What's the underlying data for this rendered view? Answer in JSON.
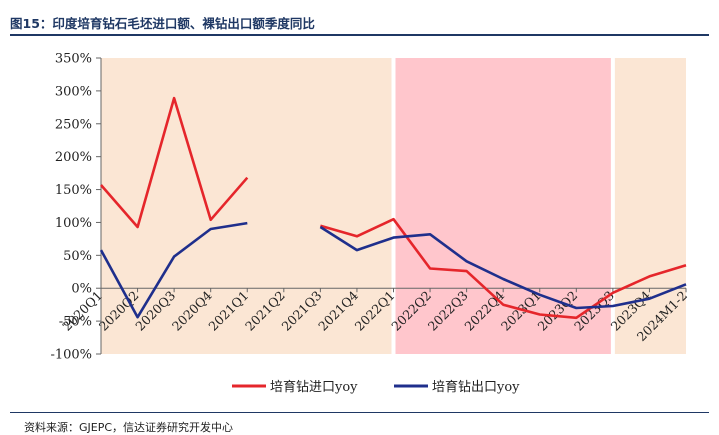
{
  "header": {
    "title": "图15：印度培育钻石毛坯进口额、裸钻出口额季度同比"
  },
  "footer": {
    "source": "资料来源：GJEPC，信达证券研究开发中心"
  },
  "colors": {
    "title": "#1f3864",
    "import_line": "#e5262b",
    "export_line": "#1f2f8c",
    "shade_beige": "#fbe6d4",
    "shade_pink": "#ffc6cc"
  },
  "chart_data": {
    "type": "line",
    "title": "",
    "xlabel": "",
    "ylabel": "",
    "ylim": [
      -1.0,
      3.5
    ],
    "yticks": [
      -1.0,
      -0.5,
      0.0,
      0.5,
      1.0,
      1.5,
      2.0,
      2.5,
      3.0,
      3.5
    ],
    "ytick_labels": [
      "-100%",
      "-50%",
      "0%",
      "50%",
      "100%",
      "150%",
      "200%",
      "250%",
      "300%",
      "350%"
    ],
    "categories": [
      "2020Q1",
      "2020Q2",
      "2020Q3",
      "2020Q4",
      "2021Q1",
      "2021Q2",
      "2021Q3",
      "2021Q4",
      "2022Q1",
      "2022Q2",
      "2022Q3",
      "2022Q4",
      "2023Q1",
      "2023Q2",
      "2023Q3",
      "2023Q4",
      "2024M1-2"
    ],
    "series": [
      {
        "name": "培育钻进口yoy",
        "color": "#e5262b",
        "values": [
          1.57,
          0.93,
          2.89,
          1.04,
          1.68,
          null,
          0.95,
          0.79,
          1.05,
          0.3,
          0.26,
          -0.25,
          -0.4,
          -0.45,
          -0.07,
          0.18,
          0.35
        ]
      },
      {
        "name": "培育钻出口yoy",
        "color": "#1f2f8c",
        "values": [
          0.58,
          -0.44,
          0.48,
          0.9,
          0.99,
          null,
          0.93,
          0.58,
          0.77,
          0.82,
          0.41,
          0.14,
          -0.1,
          -0.3,
          -0.27,
          -0.16,
          0.06
        ]
      }
    ],
    "shaded_regions": [
      {
        "from": "2020Q1",
        "to": "2022Q1",
        "color": "#fbe6d4"
      },
      {
        "from": "2022Q1",
        "to": "2023Q3",
        "color": "#ffc6cc"
      },
      {
        "from": "2023Q3",
        "to": "2024M1-2",
        "color": "#fbe6d4"
      }
    ],
    "grid": false,
    "legend": "bottom"
  }
}
